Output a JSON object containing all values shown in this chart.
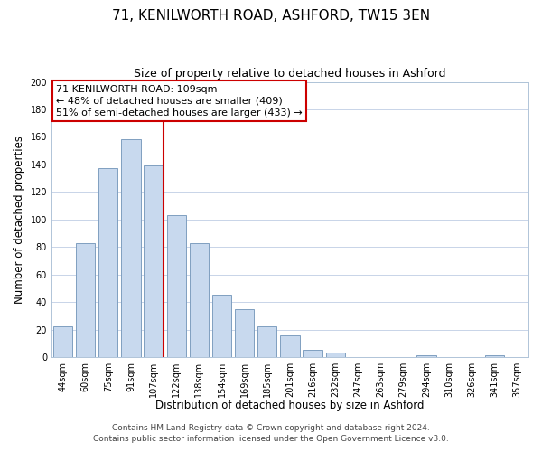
{
  "title": "71, KENILWORTH ROAD, ASHFORD, TW15 3EN",
  "subtitle": "Size of property relative to detached houses in Ashford",
  "xlabel": "Distribution of detached houses by size in Ashford",
  "ylabel": "Number of detached properties",
  "bar_labels": [
    "44sqm",
    "60sqm",
    "75sqm",
    "91sqm",
    "107sqm",
    "122sqm",
    "138sqm",
    "154sqm",
    "169sqm",
    "185sqm",
    "201sqm",
    "216sqm",
    "232sqm",
    "247sqm",
    "263sqm",
    "279sqm",
    "294sqm",
    "310sqm",
    "326sqm",
    "341sqm",
    "357sqm"
  ],
  "bar_values": [
    22,
    83,
    137,
    158,
    139,
    103,
    83,
    45,
    35,
    22,
    16,
    5,
    3,
    0,
    0,
    0,
    1,
    0,
    0,
    1,
    0
  ],
  "bar_color": "#c8d9ee",
  "bar_edgecolor": "#7f9fc0",
  "vline_index": 4,
  "vline_color": "#cc0000",
  "annotation_line1": "71 KENILWORTH ROAD: 109sqm",
  "annotation_line2": "← 48% of detached houses are smaller (409)",
  "annotation_line3": "51% of semi-detached houses are larger (433) →",
  "ylim": [
    0,
    200
  ],
  "yticks": [
    0,
    20,
    40,
    60,
    80,
    100,
    120,
    140,
    160,
    180,
    200
  ],
  "footer_line1": "Contains HM Land Registry data © Crown copyright and database right 2024.",
  "footer_line2": "Contains public sector information licensed under the Open Government Licence v3.0.",
  "background_color": "#ffffff",
  "grid_color": "#c8d4e8",
  "title_fontsize": 11,
  "subtitle_fontsize": 9,
  "axis_label_fontsize": 8.5,
  "tick_fontsize": 7,
  "annotation_fontsize": 8,
  "footer_fontsize": 6.5
}
